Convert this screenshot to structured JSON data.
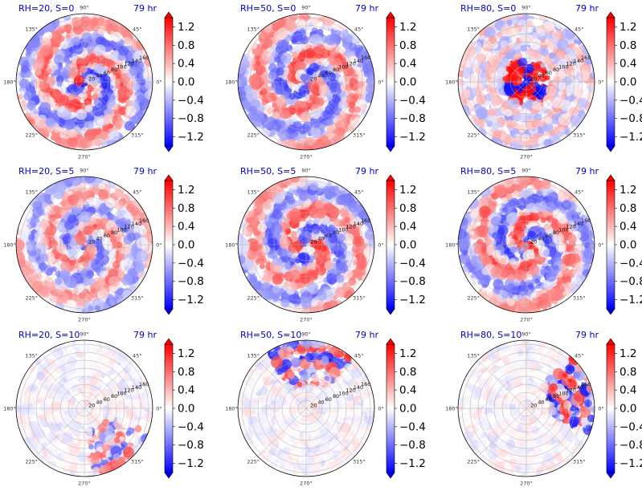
{
  "chart_data": {
    "type": "polar-heatmap-grid",
    "angle_ticks": [
      "90°",
      "45°",
      "0°",
      "315°",
      "270°",
      "225°",
      "180°",
      "135°"
    ],
    "radial_ticks": [
      "20",
      "40",
      "60",
      "80",
      "100",
      "120",
      "140",
      "160"
    ],
    "colorbar": {
      "ticks": [
        "1.2",
        "0.8",
        "0.4",
        "0.0",
        "−0.4",
        "−0.8",
        "−1.2"
      ],
      "range": [
        -1.4,
        1.4
      ],
      "colormap": "bwr",
      "colors": {
        "low": "#0000ff",
        "mid": "#ffffff",
        "high": "#ff0000"
      }
    },
    "panels": [
      {
        "label": "RH=20, S=0",
        "time": "79 hr",
        "pattern": "spiral",
        "rot": 1.3,
        "tight": 0.55,
        "intensity": 1.0,
        "seed": 11
      },
      {
        "label": "RH=50, S=0",
        "time": "79 hr",
        "pattern": "spiral",
        "rot": 0.6,
        "tight": 0.45,
        "intensity": 0.95,
        "seed": 12
      },
      {
        "label": "RH=80, S=0",
        "time": "79 hr",
        "pattern": "ring",
        "rot": 0.2,
        "tight": 0.35,
        "intensity": 1.0,
        "seed": 13
      },
      {
        "label": "RH=20, S=5",
        "time": "79 hr",
        "pattern": "spiral",
        "rot": 2.1,
        "tight": 0.6,
        "intensity": 0.8,
        "seed": 21
      },
      {
        "label": "RH=50, S=5",
        "time": "79 hr",
        "pattern": "spiral",
        "rot": -0.6,
        "tight": 0.5,
        "intensity": 0.95,
        "seed": 22
      },
      {
        "label": "RH=80, S=5",
        "time": "79 hr",
        "pattern": "spiral",
        "rot": 0.8,
        "tight": 0.5,
        "intensity": 1.0,
        "seed": 23
      },
      {
        "label": "RH=20, S=10",
        "time": "79 hr",
        "pattern": "sector",
        "sector": -0.9,
        "width": 1.1,
        "intensity": 0.7,
        "seed": 31
      },
      {
        "label": "RH=50, S=10",
        "time": "79 hr",
        "pattern": "sector",
        "sector": 1.5,
        "width": 1.4,
        "intensity": 0.9,
        "seed": 32
      },
      {
        "label": "RH=80, S=10",
        "time": "79 hr",
        "pattern": "sector",
        "sector": 0.25,
        "width": 1.2,
        "intensity": 0.95,
        "seed": 33
      }
    ]
  }
}
